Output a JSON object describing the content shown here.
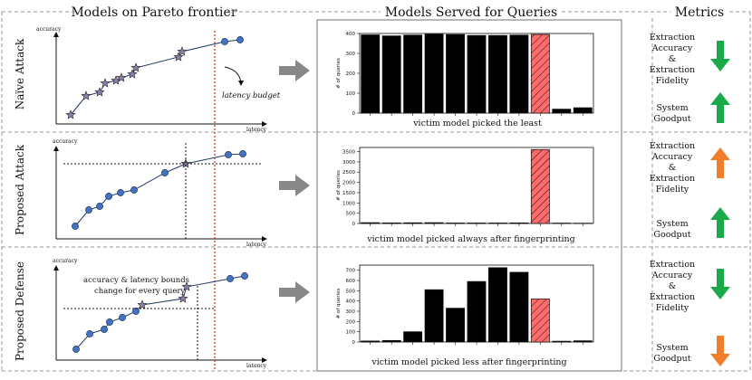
{
  "headers": {
    "pareto": "Models on Pareto frontier",
    "served": "Models Served for Queries",
    "metrics": "Metrics"
  },
  "rows": [
    {
      "label": "Naive Attack",
      "label_display": "Naïve Attack",
      "pareto": {
        "y_axis": "accuracy",
        "x_axis": "latency",
        "budget_label": "latency budget"
      },
      "caption": "victim model picked the least",
      "metrics": [
        {
          "lines": [
            "Extraction",
            "Accuracy",
            "&",
            "Extraction",
            "Fidelity"
          ],
          "direction": "down",
          "color": "#1aaa4a"
        },
        {
          "lines": [
            "System",
            "Goodput"
          ],
          "direction": "up",
          "color": "#1aaa4a"
        }
      ]
    },
    {
      "label": "Proposed Attack",
      "label_display": "Proposed Attack",
      "pareto": {
        "y_axis": "accuracy",
        "x_axis": "latency"
      },
      "caption": "victim model picked always after fingerprinting",
      "metrics": [
        {
          "lines": [
            "Extraction",
            "Accuracy",
            "&",
            "Extraction",
            "Fidelity"
          ],
          "direction": "up",
          "color": "#f07e2a"
        },
        {
          "lines": [
            "System",
            "Goodput"
          ],
          "direction": "up",
          "color": "#1aaa4a"
        }
      ]
    },
    {
      "label": "Proposed Defense",
      "label_display": "Proposed Defense",
      "pareto": {
        "y_axis": "accuracy",
        "x_axis": "latency",
        "annotation": [
          "accuracy & latency bounds",
          "change for every query"
        ]
      },
      "caption": "victim model picked less after fingerprinting",
      "metrics": [
        {
          "lines": [
            "Extraction",
            "Accuracy",
            "&",
            "Extraction",
            "Fidelity"
          ],
          "direction": "down",
          "color": "#1aaa4a"
        },
        {
          "lines": [
            "System",
            "Goodput"
          ],
          "direction": "down",
          "color": "#f07e2a"
        }
      ]
    }
  ],
  "chart_data": [
    {
      "type": "bar",
      "ylabel": "# of queries",
      "ylim": [
        0,
        400
      ],
      "yticks": [
        0,
        100,
        200,
        300,
        400
      ],
      "values": [
        393,
        388,
        392,
        397,
        395,
        390,
        390,
        392,
        395,
        20,
        27
      ],
      "highlight_index": 8
    },
    {
      "type": "bar",
      "ylabel": "# of queries",
      "ylim": [
        0,
        3700
      ],
      "yticks": [
        0,
        500,
        1000,
        1500,
        2000,
        2500,
        3000,
        3500
      ],
      "values": [
        40,
        30,
        35,
        40,
        25,
        25,
        25,
        30,
        3600,
        20,
        15
      ],
      "highlight_index": 8
    },
    {
      "type": "bar",
      "ylabel": "# of queries",
      "ylim": [
        0,
        750
      ],
      "yticks": [
        0,
        100,
        200,
        300,
        400,
        500,
        600,
        700
      ],
      "values": [
        10,
        15,
        100,
        510,
        330,
        590,
        725,
        680,
        420,
        8,
        12
      ],
      "highlight_index": 8
    }
  ],
  "colors": {
    "bar": "#000000",
    "highlight": "#ff6b6b",
    "point": "#4472c4",
    "budget_line": "#e02020",
    "arrow": "#888888"
  }
}
